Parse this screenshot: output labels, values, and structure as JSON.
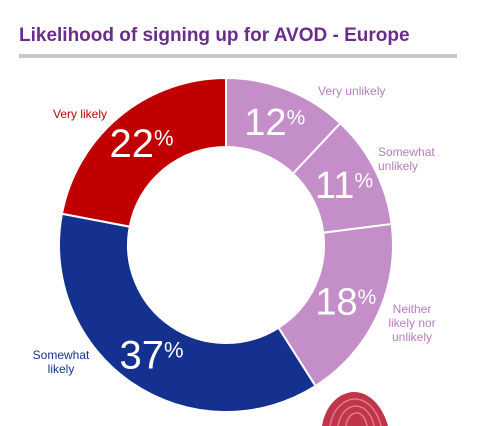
{
  "title": "Likelihood of signing up for AVOD - Europe",
  "colors": {
    "very_likely": "#c00000",
    "somewhat_likely": "#14318f",
    "neither": "#c48ec9",
    "somewhat_unlikely": "#c48ec9",
    "very_unlikely": "#c48ec9",
    "title": "#6b2c8c",
    "label_purple": "#b67cc0"
  },
  "chart_data": {
    "type": "pie",
    "variant": "donut",
    "title": "Likelihood of signing up for AVOD - Europe",
    "unit": "%",
    "slices": [
      {
        "label": "Very unlikely",
        "label_lines": [
          "Very unlikely"
        ],
        "value": 12,
        "display": "12%",
        "color": "#c48ec9",
        "label_color": "#b67cc0"
      },
      {
        "label": "Somewhat unlikely",
        "label_lines": [
          "Somewhat",
          "unlikely"
        ],
        "value": 11,
        "display": "11%",
        "color": "#c48ec9",
        "label_color": "#b67cc0"
      },
      {
        "label": "Neither likely nor unlikely",
        "label_lines": [
          "Neither",
          "likely nor",
          "unlikely"
        ],
        "value": 18,
        "display": "18%",
        "color": "#c48ec9",
        "label_color": "#b67cc0"
      },
      {
        "label": "Somewhat likely",
        "label_lines": [
          "Somewhat",
          "likely"
        ],
        "value": 37,
        "display": "37%",
        "color": "#14318f",
        "label_color": "#14318f"
      },
      {
        "label": "Very likely",
        "label_lines": [
          "Very likely"
        ],
        "value": 22,
        "display": "22%",
        "color": "#c00000",
        "label_color": "#c00000"
      }
    ]
  }
}
